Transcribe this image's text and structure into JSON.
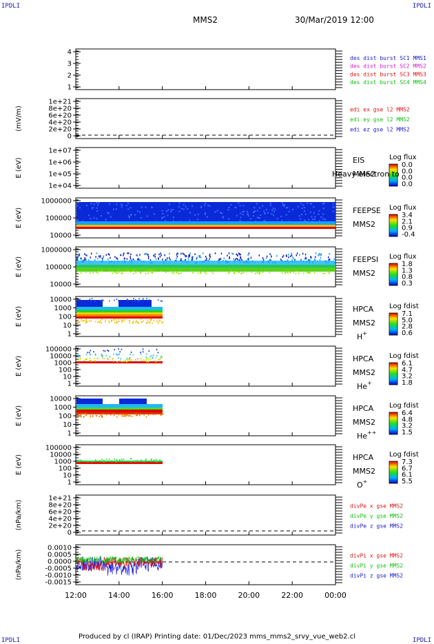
{
  "corner_label": "IPDLI",
  "header": {
    "spacecraft": "MMS2",
    "datetime": "30/Mar/2019 12:00"
  },
  "footer": "Produced by cl (IRAP)   Printing date: 01/Dec/2023   mms_mms2_srvy_vue_web2.cl",
  "chart_data": {
    "type": "heatmap",
    "x_tick_labels": [
      "12:00",
      "14:00",
      "16:00",
      "18:00",
      "20:00",
      "22:00",
      "00:00"
    ],
    "panels": [
      {
        "id": "des-dist-burst",
        "ylabel": "",
        "y_ticks": [
          "1",
          "2",
          "3",
          "4"
        ],
        "legend": [
          {
            "text": "des dist burst SC1 MMS1",
            "color": "#1818d0"
          },
          {
            "text": "des dist burst SC2 MMS2",
            "color": "#d020d0"
          },
          {
            "text": "des dist burst SC3 MMS3",
            "color": "#e01010"
          },
          {
            "text": "des dist burst SC4 MMS4",
            "color": "#10c010"
          }
        ]
      },
      {
        "id": "edi-e",
        "ylabel": "(mV/m)",
        "y_ticks": [
          "0",
          "2e+20",
          "4e+20",
          "6e+20",
          "8e+20",
          "1e+21"
        ],
        "legend": [
          {
            "text": "edi ex gse l2 MMS2",
            "color": "#e01010"
          },
          {
            "text": "edi ey gse l2 MMS2",
            "color": "#10c010"
          },
          {
            "text": "edi ez gse l2 MMS2",
            "color": "#1818d0"
          }
        ]
      },
      {
        "id": "eis",
        "ylabel": "E (eV)",
        "y_ticks": [
          "1e+04",
          "1e+05",
          "1e+06",
          "1e+07"
        ],
        "label_lines": [
          "EIS",
          "MMS2"
        ],
        "overlay": "Heavy electron to",
        "cbar_title": "Log flux",
        "cbar_ticks": [
          "0.0",
          "0.0",
          "0.0",
          "0.0"
        ]
      },
      {
        "id": "feepse",
        "ylabel": "E (eV)",
        "y_ticks": [
          "10000",
          "100000",
          "1000000"
        ],
        "label_lines": [
          "FEEPSE",
          "MMS2"
        ],
        "cbar_title": "Log flux",
        "cbar_ticks": [
          "3.4",
          "2.1",
          "0.9",
          "-0.4"
        ]
      },
      {
        "id": "feepsi",
        "ylabel": "E (eV)",
        "y_ticks": [
          "10000",
          "100000",
          "1000000"
        ],
        "label_lines": [
          "FEEPSI",
          "MMS2"
        ],
        "cbar_title": "Log flux",
        "cbar_ticks": [
          "1.8",
          "1.3",
          "0.8",
          "0.3"
        ]
      },
      {
        "id": "hpca-h",
        "ylabel": "E (eV)",
        "y_ticks": [
          "1",
          "10",
          "100",
          "1000",
          "10000"
        ],
        "label_lines": [
          "HPCA",
          "MMS2"
        ],
        "species_base": "H",
        "species_sup": "+",
        "cbar_title": "Log fdist",
        "cbar_ticks": [
          "7.1",
          "5.0",
          "2.8",
          "0.6"
        ]
      },
      {
        "id": "hpca-he",
        "ylabel": "E (eV)",
        "y_ticks": [
          "1",
          "10",
          "100",
          "1000",
          "10000",
          "100000"
        ],
        "label_lines": [
          "HPCA",
          "MMS2"
        ],
        "species_base": "He",
        "species_sup": "+",
        "cbar_title": "Log fdist",
        "cbar_ticks": [
          "6.1",
          "4.7",
          "3.2",
          "1.8"
        ]
      },
      {
        "id": "hpca-hepp",
        "ylabel": "E (eV)",
        "y_ticks": [
          "1",
          "10",
          "100",
          "1000",
          "10000"
        ],
        "label_lines": [
          "HPCA",
          "MMS2"
        ],
        "species_base": "He",
        "species_sup": "++",
        "cbar_title": "Log fdist",
        "cbar_ticks": [
          "6.4",
          "4.8",
          "3.2",
          "1.5"
        ]
      },
      {
        "id": "hpca-o",
        "ylabel": "E (eV)",
        "y_ticks": [
          "1",
          "10",
          "100",
          "1000",
          "10000",
          "100000"
        ],
        "label_lines": [
          "HPCA",
          "MMS2"
        ],
        "species_base": "O",
        "species_sup": "+",
        "cbar_title": "Log fdist",
        "cbar_ticks": [
          "7.3",
          "6.7",
          "6.1",
          "5.5"
        ]
      },
      {
        "id": "divpe",
        "ylabel": "(nPa/km)",
        "y_ticks": [
          "0",
          "2e+20",
          "4e+20",
          "6e+20",
          "8e+20",
          "1e+21"
        ],
        "legend": [
          {
            "text": "divPe x gse MMS2",
            "color": "#e01010"
          },
          {
            "text": "divPe y gse MMS2",
            "color": "#10c010"
          },
          {
            "text": "divPe z gse MMS2",
            "color": "#1818d0"
          }
        ]
      },
      {
        "id": "divpi",
        "ylabel": "(nPa/km)",
        "y_ticks": [
          "-0.0015",
          "-0.0010",
          "-0.0005",
          "0.0000",
          "0.0005",
          "0.0010"
        ],
        "legend": [
          {
            "text": "divPi x gse MMS2",
            "color": "#e01010"
          },
          {
            "text": "divPi y gse MMS2",
            "color": "#10c010"
          },
          {
            "text": "divPi z gse MMS2",
            "color": "#1818d0"
          }
        ]
      }
    ]
  }
}
